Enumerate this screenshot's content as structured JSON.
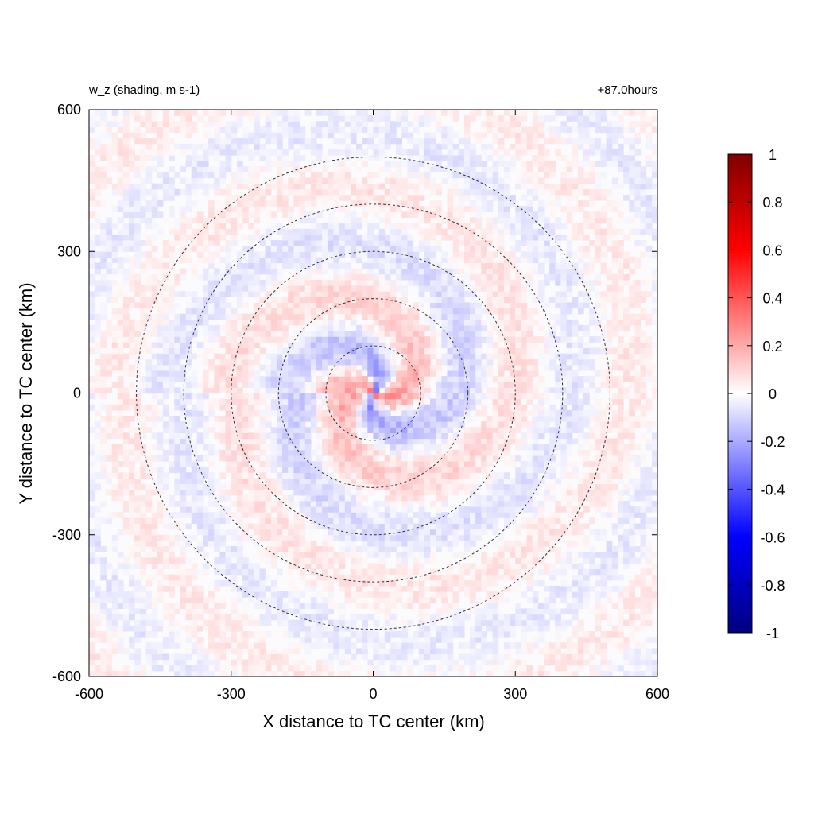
{
  "chart_data": {
    "type": "heatmap",
    "title_left": "w_z (shading, m s-1)",
    "title_right": "+87.0hours",
    "xlabel": "X distance to TC center (km)",
    "ylabel": "Y distance to TC center (km)",
    "xlim": [
      -600,
      600
    ],
    "ylim": [
      -600,
      600
    ],
    "xticks": [
      -600,
      -300,
      0,
      300,
      600
    ],
    "yticks": [
      -600,
      -300,
      0,
      300,
      600
    ],
    "xtick_labels": [
      "-600",
      "-300",
      "0",
      "300",
      "600"
    ],
    "ytick_labels": [
      "-600",
      "-300",
      "0",
      "300",
      "600"
    ],
    "range_rings_km": [
      100,
      200,
      300,
      400,
      500
    ],
    "colorbar": {
      "min": -1,
      "max": 1,
      "ticks": [
        1,
        0.8,
        0.6,
        0.4,
        0.2,
        0,
        -0.2,
        -0.4,
        -0.6,
        -0.8,
        -1
      ],
      "tick_labels": [
        "1",
        "0.8",
        "0.6",
        "0.4",
        "0.2",
        "0",
        "-0.2",
        "-0.4",
        "-0.6",
        "-0.8",
        "-1"
      ],
      "colormap": "blue-white-red",
      "colors": {
        "min": "#00007f",
        "low": "#0000ff",
        "mid": "#ffffff",
        "high": "#ff0000",
        "max": "#7f0000"
      }
    },
    "grid": false
  }
}
